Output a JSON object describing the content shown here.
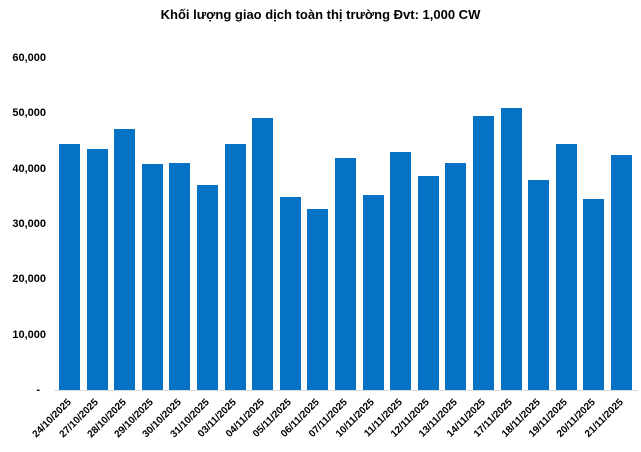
{
  "chart_data": {
    "type": "bar",
    "title": "Khối lượng giao dịch toàn thị trường Đvt: 1,000 CW",
    "categories": [
      "24/10/2025",
      "27/10/2025",
      "28/10/2025",
      "29/10/2025",
      "30/10/2025",
      "31/10/2025",
      "03/11/2025",
      "04/11/2025",
      "05/11/2025",
      "06/11/2025",
      "07/11/2025",
      "10/11/2025",
      "11/11/2025",
      "12/11/2025",
      "13/11/2025",
      "14/11/2025",
      "17/11/2025",
      "18/11/2025",
      "19/11/2025",
      "20/11/2025",
      "21/11/2025"
    ],
    "values": [
      44400,
      43600,
      47100,
      40800,
      41100,
      37100,
      44500,
      49100,
      34900,
      32800,
      41900,
      35300,
      43100,
      38600,
      41000,
      49500,
      51000,
      37900,
      44400,
      34500,
      42500
    ],
    "xlabel": "",
    "ylabel": "",
    "ylim": [
      0,
      60000
    ],
    "ytick_step": 10000,
    "ytick_labels": [
      "-",
      "10,000",
      "20,000",
      "30,000",
      "40,000",
      "50,000",
      "60,000"
    ],
    "grid": false,
    "legend": "none",
    "bar_color": "#0572C4",
    "axis_line_color": "#D9D9D9",
    "text_color": "#000000",
    "background_color": "#FFFFFF"
  }
}
